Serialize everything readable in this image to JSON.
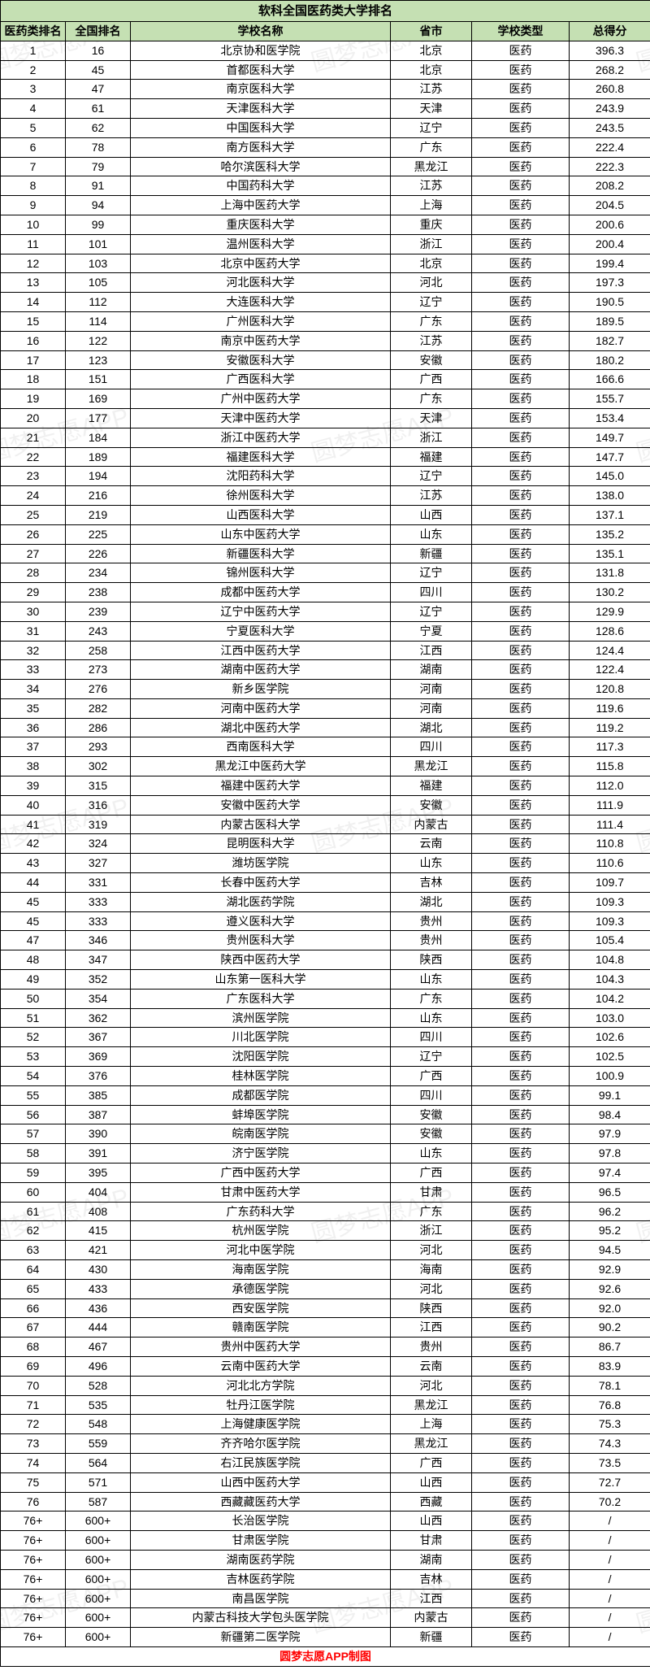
{
  "title": "软科全国医药类大学排名",
  "footer": "圆梦志愿APP制图",
  "watermark_text": "圆梦志愿APP",
  "colors": {
    "header_bg": "#c5e0b3",
    "border": "#000000",
    "footer_text": "#ff0000",
    "watermark": "rgba(0,0,0,0.06)"
  },
  "columns": [
    "医药类排名",
    "全国排名",
    "学校名称",
    "省市",
    "学校类型",
    "总得分"
  ],
  "rows": [
    [
      "1",
      "16",
      "北京协和医学院",
      "北京",
      "医药",
      "396.3"
    ],
    [
      "2",
      "45",
      "首都医科大学",
      "北京",
      "医药",
      "268.2"
    ],
    [
      "3",
      "47",
      "南京医科大学",
      "江苏",
      "医药",
      "260.8"
    ],
    [
      "4",
      "61",
      "天津医科大学",
      "天津",
      "医药",
      "243.9"
    ],
    [
      "5",
      "62",
      "中国医科大学",
      "辽宁",
      "医药",
      "243.5"
    ],
    [
      "6",
      "78",
      "南方医科大学",
      "广东",
      "医药",
      "222.4"
    ],
    [
      "7",
      "79",
      "哈尔滨医科大学",
      "黑龙江",
      "医药",
      "222.3"
    ],
    [
      "8",
      "91",
      "中国药科大学",
      "江苏",
      "医药",
      "208.2"
    ],
    [
      "9",
      "94",
      "上海中医药大学",
      "上海",
      "医药",
      "204.5"
    ],
    [
      "10",
      "99",
      "重庆医科大学",
      "重庆",
      "医药",
      "200.6"
    ],
    [
      "11",
      "101",
      "温州医科大学",
      "浙江",
      "医药",
      "200.4"
    ],
    [
      "12",
      "103",
      "北京中医药大学",
      "北京",
      "医药",
      "199.4"
    ],
    [
      "13",
      "105",
      "河北医科大学",
      "河北",
      "医药",
      "197.3"
    ],
    [
      "14",
      "112",
      "大连医科大学",
      "辽宁",
      "医药",
      "190.5"
    ],
    [
      "15",
      "114",
      "广州医科大学",
      "广东",
      "医药",
      "189.5"
    ],
    [
      "16",
      "122",
      "南京中医药大学",
      "江苏",
      "医药",
      "182.7"
    ],
    [
      "17",
      "123",
      "安徽医科大学",
      "安徽",
      "医药",
      "180.2"
    ],
    [
      "18",
      "151",
      "广西医科大学",
      "广西",
      "医药",
      "166.6"
    ],
    [
      "19",
      "169",
      "广州中医药大学",
      "广东",
      "医药",
      "155.7"
    ],
    [
      "20",
      "177",
      "天津中医药大学",
      "天津",
      "医药",
      "153.4"
    ],
    [
      "21",
      "184",
      "浙江中医药大学",
      "浙江",
      "医药",
      "149.7"
    ],
    [
      "22",
      "189",
      "福建医科大学",
      "福建",
      "医药",
      "147.7"
    ],
    [
      "23",
      "194",
      "沈阳药科大学",
      "辽宁",
      "医药",
      "145.0"
    ],
    [
      "24",
      "216",
      "徐州医科大学",
      "江苏",
      "医药",
      "138.0"
    ],
    [
      "25",
      "219",
      "山西医科大学",
      "山西",
      "医药",
      "137.1"
    ],
    [
      "26",
      "225",
      "山东中医药大学",
      "山东",
      "医药",
      "135.2"
    ],
    [
      "27",
      "226",
      "新疆医科大学",
      "新疆",
      "医药",
      "135.1"
    ],
    [
      "28",
      "234",
      "锦州医科大学",
      "辽宁",
      "医药",
      "131.8"
    ],
    [
      "29",
      "238",
      "成都中医药大学",
      "四川",
      "医药",
      "130.2"
    ],
    [
      "30",
      "239",
      "辽宁中医药大学",
      "辽宁",
      "医药",
      "129.9"
    ],
    [
      "31",
      "243",
      "宁夏医科大学",
      "宁夏",
      "医药",
      "128.6"
    ],
    [
      "32",
      "258",
      "江西中医药大学",
      "江西",
      "医药",
      "124.4"
    ],
    [
      "33",
      "273",
      "湖南中医药大学",
      "湖南",
      "医药",
      "122.4"
    ],
    [
      "34",
      "276",
      "新乡医学院",
      "河南",
      "医药",
      "120.8"
    ],
    [
      "35",
      "282",
      "河南中医药大学",
      "河南",
      "医药",
      "119.6"
    ],
    [
      "36",
      "286",
      "湖北中医药大学",
      "湖北",
      "医药",
      "119.2"
    ],
    [
      "37",
      "293",
      "西南医科大学",
      "四川",
      "医药",
      "117.3"
    ],
    [
      "38",
      "302",
      "黑龙江中医药大学",
      "黑龙江",
      "医药",
      "115.8"
    ],
    [
      "39",
      "315",
      "福建中医药大学",
      "福建",
      "医药",
      "112.0"
    ],
    [
      "40",
      "316",
      "安徽中医药大学",
      "安徽",
      "医药",
      "111.9"
    ],
    [
      "41",
      "319",
      "内蒙古医科大学",
      "内蒙古",
      "医药",
      "111.4"
    ],
    [
      "42",
      "324",
      "昆明医科大学",
      "云南",
      "医药",
      "110.8"
    ],
    [
      "43",
      "327",
      "潍坊医学院",
      "山东",
      "医药",
      "110.6"
    ],
    [
      "44",
      "331",
      "长春中医药大学",
      "吉林",
      "医药",
      "109.7"
    ],
    [
      "45",
      "333",
      "湖北医药学院",
      "湖北",
      "医药",
      "109.3"
    ],
    [
      "45",
      "333",
      "遵义医科大学",
      "贵州",
      "医药",
      "109.3"
    ],
    [
      "47",
      "346",
      "贵州医科大学",
      "贵州",
      "医药",
      "105.4"
    ],
    [
      "48",
      "347",
      "陕西中医药大学",
      "陕西",
      "医药",
      "104.8"
    ],
    [
      "49",
      "352",
      "山东第一医科大学",
      "山东",
      "医药",
      "104.3"
    ],
    [
      "50",
      "354",
      "广东医科大学",
      "广东",
      "医药",
      "104.2"
    ],
    [
      "51",
      "362",
      "滨州医学院",
      "山东",
      "医药",
      "103.0"
    ],
    [
      "52",
      "367",
      "川北医学院",
      "四川",
      "医药",
      "102.6"
    ],
    [
      "53",
      "369",
      "沈阳医学院",
      "辽宁",
      "医药",
      "102.5"
    ],
    [
      "54",
      "376",
      "桂林医学院",
      "广西",
      "医药",
      "100.9"
    ],
    [
      "55",
      "385",
      "成都医学院",
      "四川",
      "医药",
      "99.1"
    ],
    [
      "56",
      "387",
      "蚌埠医学院",
      "安徽",
      "医药",
      "98.4"
    ],
    [
      "57",
      "390",
      "皖南医学院",
      "安徽",
      "医药",
      "97.9"
    ],
    [
      "58",
      "391",
      "济宁医学院",
      "山东",
      "医药",
      "97.8"
    ],
    [
      "59",
      "395",
      "广西中医药大学",
      "广西",
      "医药",
      "97.4"
    ],
    [
      "60",
      "404",
      "甘肃中医药大学",
      "甘肃",
      "医药",
      "96.5"
    ],
    [
      "61",
      "408",
      "广东药科大学",
      "广东",
      "医药",
      "96.2"
    ],
    [
      "62",
      "415",
      "杭州医学院",
      "浙江",
      "医药",
      "95.2"
    ],
    [
      "63",
      "421",
      "河北中医学院",
      "河北",
      "医药",
      "94.5"
    ],
    [
      "64",
      "430",
      "海南医学院",
      "海南",
      "医药",
      "92.9"
    ],
    [
      "65",
      "433",
      "承德医学院",
      "河北",
      "医药",
      "92.6"
    ],
    [
      "66",
      "436",
      "西安医学院",
      "陕西",
      "医药",
      "92.0"
    ],
    [
      "67",
      "444",
      "赣南医学院",
      "江西",
      "医药",
      "90.2"
    ],
    [
      "68",
      "467",
      "贵州中医药大学",
      "贵州",
      "医药",
      "86.7"
    ],
    [
      "69",
      "496",
      "云南中医药大学",
      "云南",
      "医药",
      "83.9"
    ],
    [
      "70",
      "528",
      "河北北方学院",
      "河北",
      "医药",
      "78.1"
    ],
    [
      "71",
      "535",
      "牡丹江医学院",
      "黑龙江",
      "医药",
      "76.8"
    ],
    [
      "72",
      "548",
      "上海健康医学院",
      "上海",
      "医药",
      "75.3"
    ],
    [
      "73",
      "559",
      "齐齐哈尔医学院",
      "黑龙江",
      "医药",
      "74.3"
    ],
    [
      "74",
      "564",
      "右江民族医学院",
      "广西",
      "医药",
      "73.5"
    ],
    [
      "75",
      "571",
      "山西中医药大学",
      "山西",
      "医药",
      "72.7"
    ],
    [
      "76",
      "587",
      "西藏藏医药大学",
      "西藏",
      "医药",
      "70.2"
    ],
    [
      "76+",
      "600+",
      "长治医学院",
      "山西",
      "医药",
      "/"
    ],
    [
      "76+",
      "600+",
      "甘肃医学院",
      "甘肃",
      "医药",
      "/"
    ],
    [
      "76+",
      "600+",
      "湖南医药学院",
      "湖南",
      "医药",
      "/"
    ],
    [
      "76+",
      "600+",
      "吉林医药学院",
      "吉林",
      "医药",
      "/"
    ],
    [
      "76+",
      "600+",
      "南昌医学院",
      "江西",
      "医药",
      "/"
    ],
    [
      "76+",
      "600+",
      "内蒙古科技大学包头医学院",
      "内蒙古",
      "医药",
      "/"
    ],
    [
      "76+",
      "600+",
      "新疆第二医学院",
      "新疆",
      "医药",
      "/"
    ]
  ]
}
